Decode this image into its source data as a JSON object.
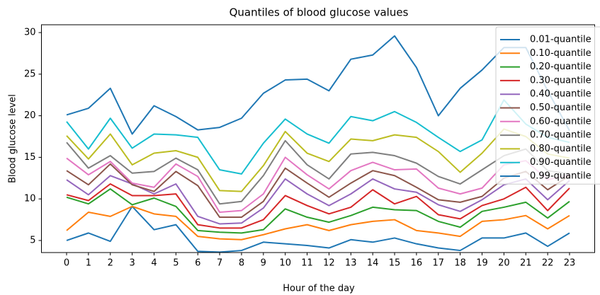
{
  "chart_data": {
    "type": "line",
    "title": "Quantiles of blood glucose values",
    "xlabel": "Hour of the day",
    "ylabel": "Blood glucose level",
    "x": [
      0,
      1,
      2,
      3,
      4,
      5,
      6,
      7,
      8,
      9,
      10,
      11,
      12,
      13,
      14,
      15,
      16,
      17,
      18,
      19,
      20,
      21,
      22,
      23
    ],
    "xlim": [
      -1.15,
      24.15
    ],
    "xticks": [
      0,
      1,
      2,
      3,
      4,
      5,
      6,
      7,
      8,
      9,
      10,
      11,
      12,
      13,
      14,
      15,
      16,
      17,
      18,
      19,
      20,
      21,
      22,
      23
    ],
    "ylim": [
      3.55,
      30.94
    ],
    "yticks": [
      5,
      10,
      15,
      20,
      25,
      30
    ],
    "grid": false,
    "legend": "upper right",
    "series": [
      {
        "name": "0.01-quantile",
        "color": "#1f77b4",
        "values": [
          5.0,
          5.9,
          4.9,
          9.1,
          6.3,
          6.9,
          3.7,
          3.6,
          3.8,
          4.8,
          4.6,
          4.4,
          4.1,
          5.1,
          4.8,
          5.3,
          4.6,
          4.1,
          3.8,
          5.3,
          5.3,
          5.9,
          4.3,
          5.9
        ]
      },
      {
        "name": "0.10-quantile",
        "color": "#ff7f0e",
        "values": [
          6.2,
          8.4,
          7.9,
          9.1,
          8.2,
          7.9,
          5.5,
          5.2,
          5.1,
          5.7,
          6.4,
          6.9,
          6.2,
          6.9,
          7.3,
          7.5,
          6.2,
          5.9,
          5.5,
          7.3,
          7.5,
          8.0,
          6.4,
          8.0
        ]
      },
      {
        "name": "0.20-quantile",
        "color": "#2ca02c",
        "values": [
          10.2,
          9.4,
          11.2,
          9.3,
          10.1,
          9.1,
          6.2,
          6.0,
          5.9,
          6.3,
          8.8,
          7.8,
          7.2,
          8.0,
          9.0,
          8.7,
          8.6,
          7.3,
          6.6,
          8.5,
          9.0,
          9.6,
          7.7,
          9.7
        ]
      },
      {
        "name": "0.30-quantile",
        "color": "#d62728",
        "values": [
          10.5,
          9.8,
          11.8,
          10.4,
          10.4,
          10.6,
          6.9,
          6.5,
          6.5,
          7.5,
          10.4,
          9.2,
          8.2,
          9.0,
          11.1,
          9.4,
          10.3,
          8.1,
          7.6,
          9.2,
          10.0,
          11.4,
          8.6,
          11.3
        ]
      },
      {
        "name": "0.40-quantile",
        "color": "#9467bd",
        "values": [
          12.3,
          10.5,
          12.8,
          11.8,
          10.6,
          11.8,
          7.9,
          7.0,
          7.1,
          8.9,
          12.4,
          10.6,
          9.2,
          10.6,
          12.4,
          11.2,
          10.8,
          9.3,
          8.5,
          9.9,
          11.7,
          12.4,
          9.9,
          12.2
        ]
      },
      {
        "name": "0.50-quantile",
        "color": "#8c564b",
        "values": [
          13.4,
          11.7,
          14.2,
          11.7,
          10.9,
          13.3,
          11.6,
          7.8,
          7.8,
          9.7,
          13.7,
          11.9,
          10.2,
          11.9,
          13.4,
          12.8,
          11.4,
          9.9,
          9.6,
          10.3,
          12.5,
          13.3,
          11.1,
          12.8
        ]
      },
      {
        "name": "0.60-quantile",
        "color": "#e377c2",
        "values": [
          14.9,
          12.9,
          14.5,
          11.9,
          11.4,
          14.2,
          12.7,
          8.4,
          8.6,
          10.6,
          15.0,
          12.9,
          11.2,
          13.4,
          14.4,
          13.5,
          13.6,
          11.3,
          10.6,
          11.3,
          14.1,
          14.6,
          12.3,
          12.9
        ]
      },
      {
        "name": "0.70-quantile",
        "color": "#7f7f7f",
        "values": [
          16.8,
          13.7,
          15.2,
          13.1,
          13.3,
          14.9,
          13.5,
          9.4,
          9.7,
          12.8,
          17.0,
          14.1,
          12.4,
          15.4,
          15.6,
          15.2,
          14.3,
          12.7,
          11.8,
          13.5,
          15.2,
          16.0,
          13.4,
          13.0
        ]
      },
      {
        "name": "0.80-quantile",
        "color": "#bcbd22",
        "values": [
          17.6,
          14.8,
          17.8,
          14.1,
          15.5,
          15.8,
          15.0,
          11.0,
          10.9,
          14.0,
          18.1,
          15.5,
          14.5,
          17.2,
          17.0,
          17.7,
          17.4,
          15.7,
          13.2,
          15.5,
          18.4,
          17.5,
          15.4,
          14.9
        ]
      },
      {
        "name": "0.90-quantile",
        "color": "#17becf",
        "values": [
          19.3,
          16.0,
          19.7,
          16.1,
          17.8,
          17.7,
          17.4,
          13.5,
          13.0,
          16.7,
          19.6,
          17.8,
          16.7,
          19.9,
          19.4,
          20.5,
          19.2,
          17.4,
          15.7,
          17.1,
          21.9,
          19.0,
          17.4,
          16.8
        ]
      },
      {
        "name": "0.99-quantile",
        "color": "#1f77b4",
        "values": [
          20.1,
          20.9,
          23.3,
          17.8,
          21.2,
          19.9,
          18.3,
          18.6,
          19.7,
          22.7,
          24.3,
          24.4,
          23.0,
          26.8,
          27.3,
          29.6,
          25.8,
          20.0,
          23.3,
          25.5,
          28.2,
          28.2,
          23.0,
          18.2
        ]
      }
    ]
  }
}
